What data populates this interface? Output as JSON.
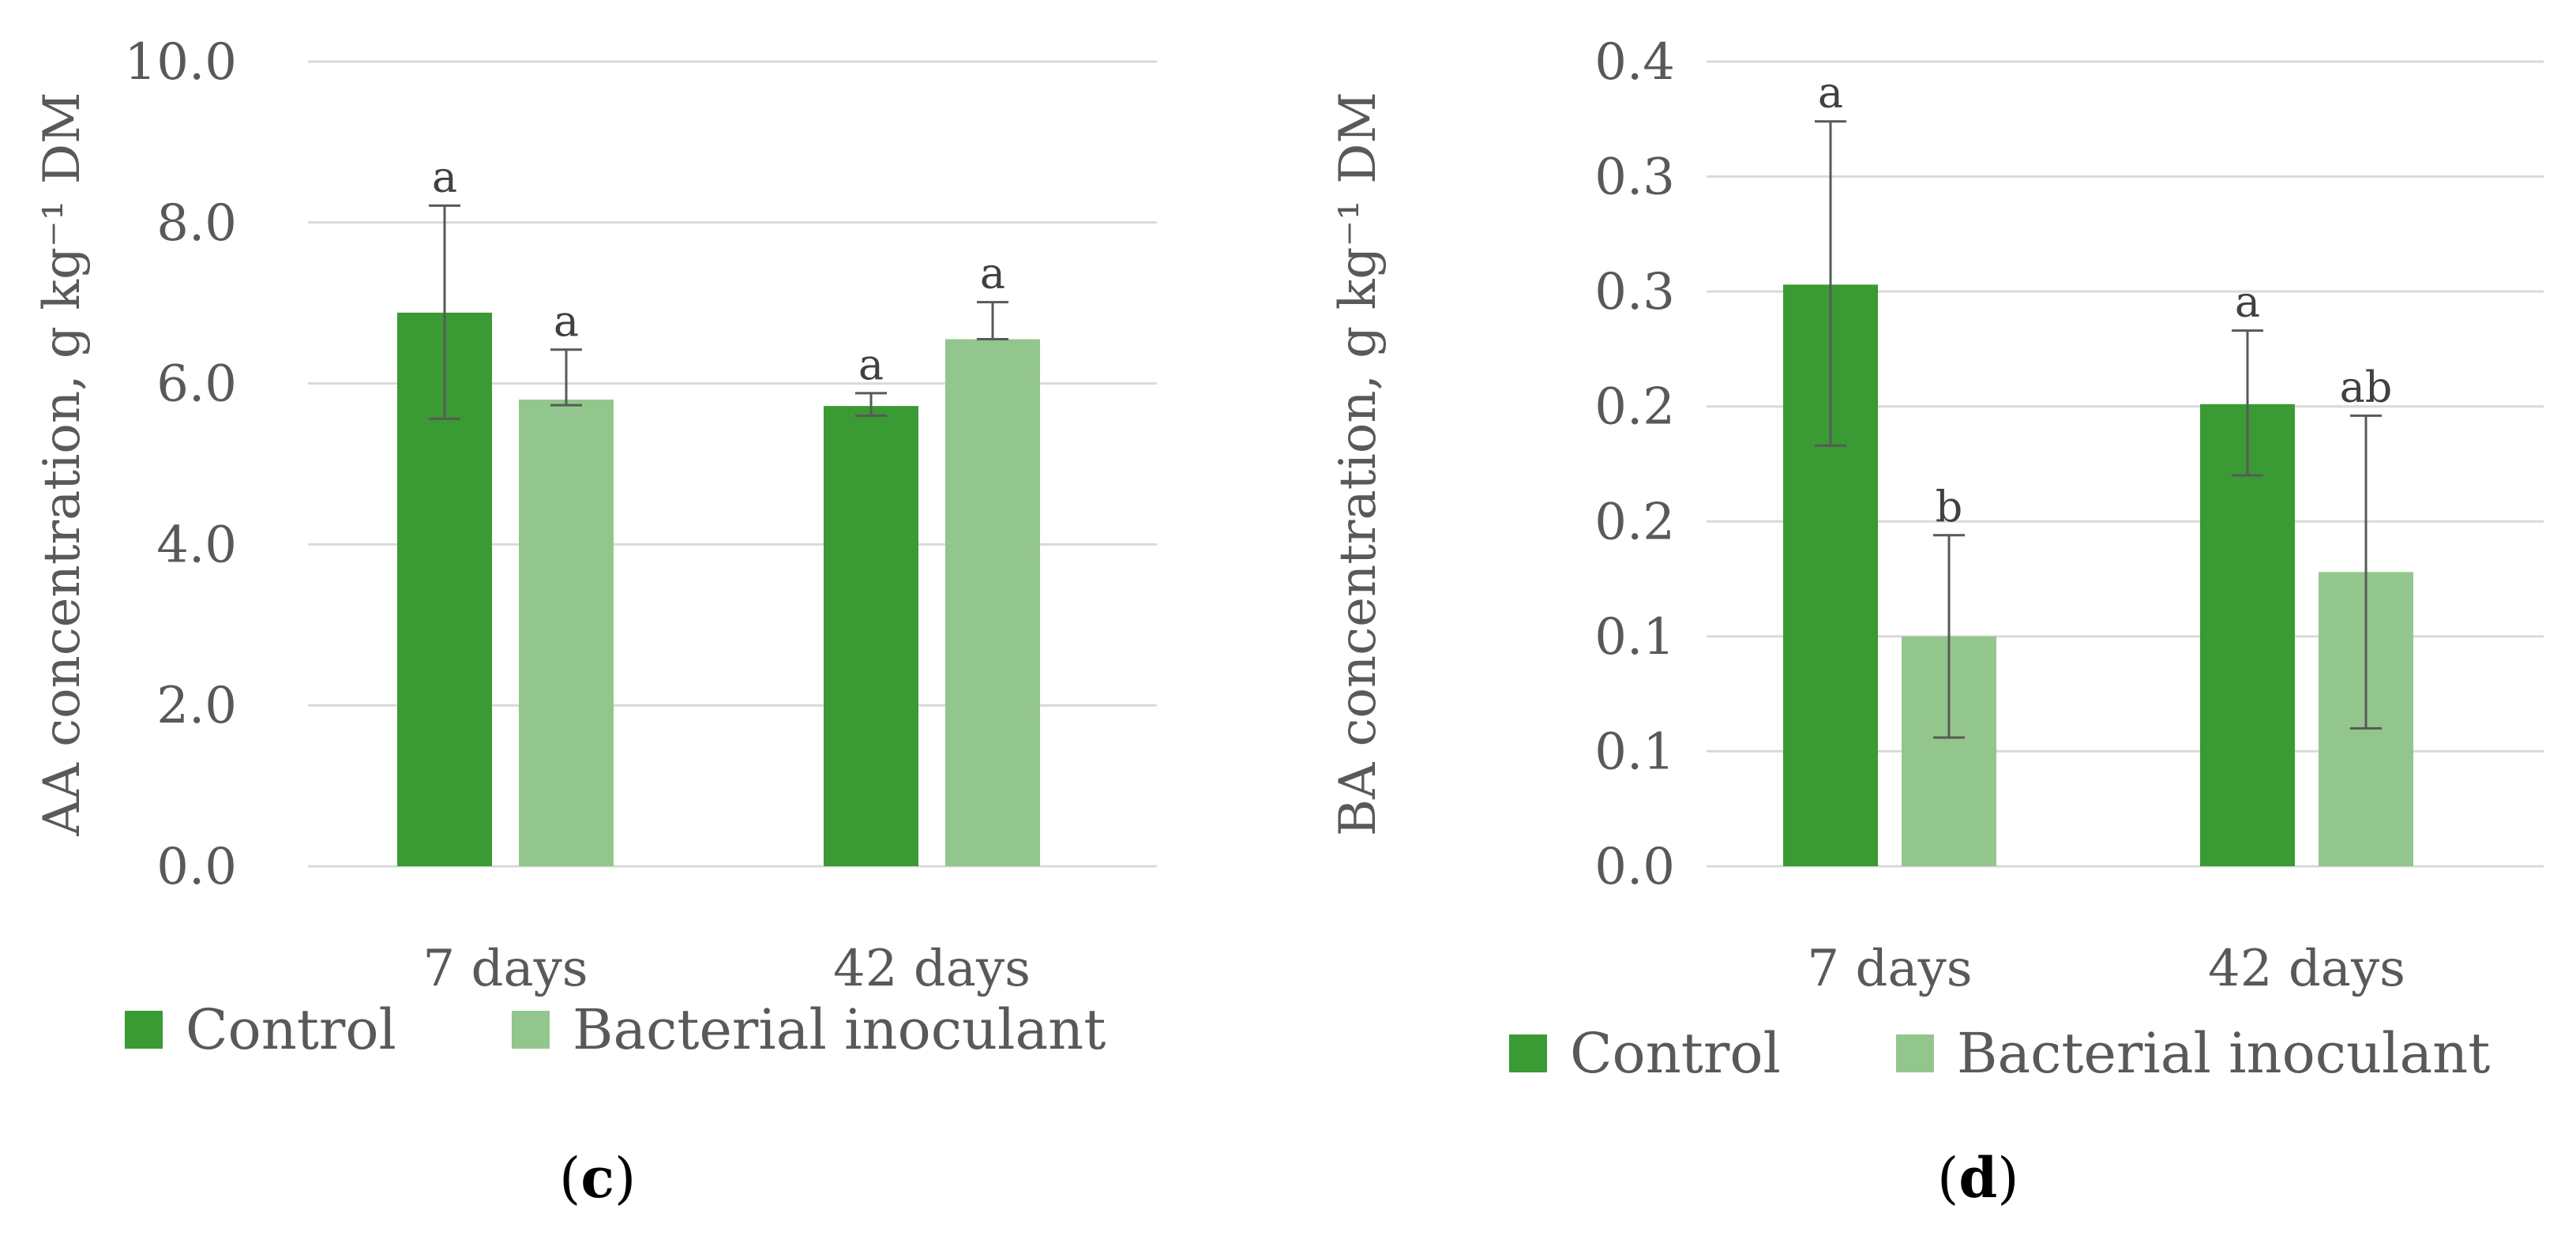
{
  "chart_data": [
    {
      "id": "c",
      "type": "bar",
      "panel_label": "c",
      "ylabel": "AA concentration, g kg⁻¹ DM",
      "ylim": [
        0,
        10
      ],
      "yticks": [
        "0.0",
        "2.0",
        "4.0",
        "6.0",
        "8.0",
        "10.0"
      ],
      "ytick_values": [
        0,
        2,
        4,
        6,
        8,
        10
      ],
      "categories": [
        "7 days",
        "42 days"
      ],
      "series": [
        {
          "name": "Control",
          "color": "#3a9a33",
          "values": [
            6.88,
            5.72
          ],
          "err_low": [
            5.56,
            5.6
          ],
          "err_high": [
            8.21,
            5.88
          ],
          "sig": [
            "a",
            "a"
          ]
        },
        {
          "name": "Bacterial inoculant",
          "color": "#93c68c",
          "values": [
            5.8,
            6.55
          ],
          "err_low": [
            5.73,
            6.55
          ],
          "err_high": [
            6.42,
            7.01
          ],
          "sig": [
            "a",
            "a"
          ]
        }
      ],
      "legend": [
        "Control",
        "Bacterial inoculant"
      ]
    },
    {
      "id": "d",
      "type": "bar",
      "panel_label": "d",
      "ylabel": "BA concentration, g kg⁻¹ DM",
      "ylim": [
        0,
        0.35
      ],
      "yticks": [
        "0.0",
        "0.1",
        "0.1",
        "0.2",
        "0.2",
        "0.3",
        "0.3",
        "0.4"
      ],
      "ytick_values": [
        0,
        0.05,
        0.1,
        0.15,
        0.2,
        0.25,
        0.3,
        0.35
      ],
      "categories": [
        "7 days",
        "42 days"
      ],
      "series": [
        {
          "name": "Control",
          "color": "#3a9a33",
          "values": [
            0.253,
            0.201
          ],
          "err_low": [
            0.183,
            0.17
          ],
          "err_high": [
            0.324,
            0.233
          ],
          "sig": [
            "a",
            "a"
          ]
        },
        {
          "name": "Bacterial inoculant",
          "color": "#93c68c",
          "values": [
            0.1,
            0.128
          ],
          "err_low": [
            0.056,
            0.06
          ],
          "err_high": [
            0.144,
            0.196
          ],
          "sig": [
            "b",
            "ab"
          ]
        }
      ],
      "legend": [
        "Control",
        "Bacterial inoculant"
      ]
    }
  ]
}
